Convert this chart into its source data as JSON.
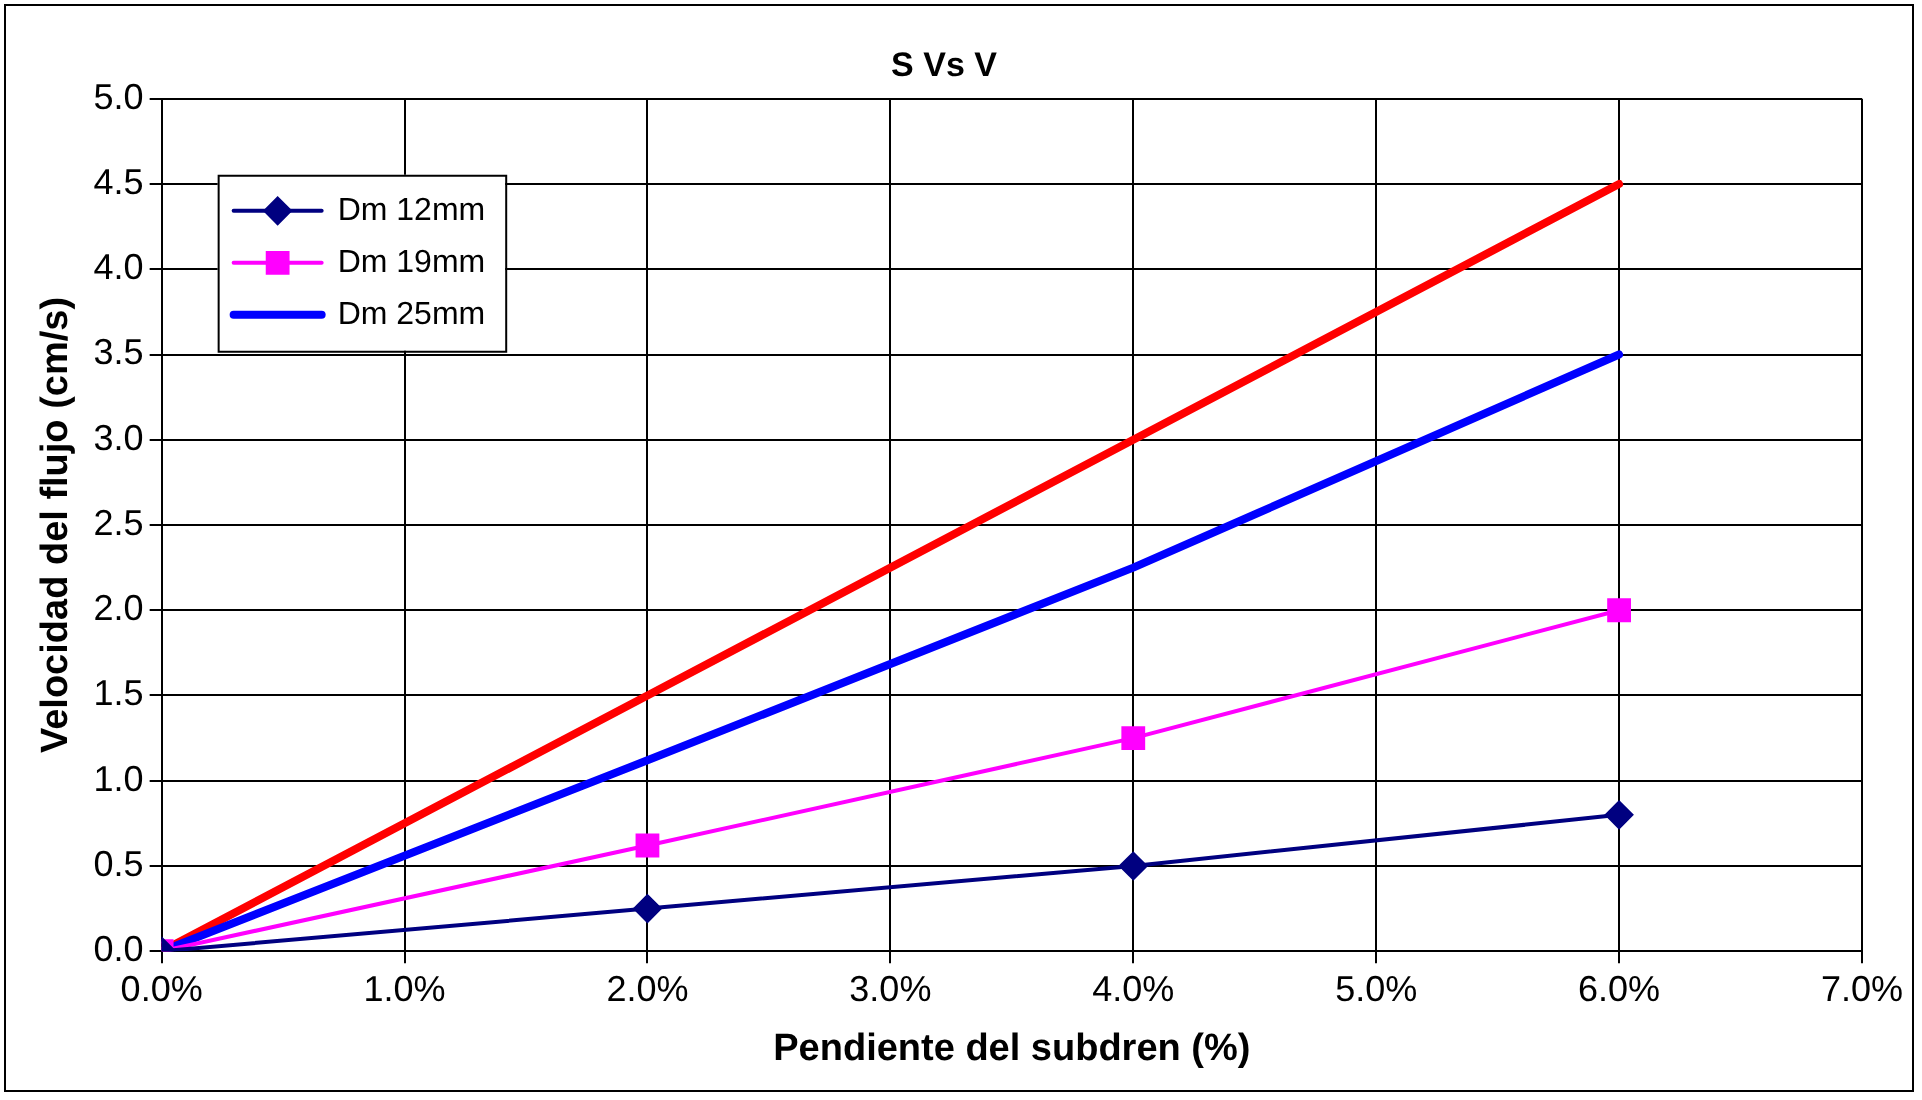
{
  "chart_data": {
    "type": "line",
    "title": "S Vs V",
    "xlabel": "Pendiente del subdren (%)",
    "ylabel": "Velocidad del flujo (cm/s)",
    "x": [
      0,
      2,
      4,
      6
    ],
    "series": [
      {
        "name": "Dm 12mm",
        "color": "#000080",
        "values": [
          0,
          0.25,
          0.5,
          0.8
        ],
        "marker": "diamond"
      },
      {
        "name": "Dm 19mm",
        "color": "#ff00ff",
        "values": [
          0,
          0.62,
          1.25,
          2.0
        ],
        "marker": "square"
      },
      {
        "name": "Dm 25mm",
        "color": "#0000ff",
        "values": [
          0,
          1.12,
          2.25,
          3.5
        ],
        "marker": "none"
      },
      {
        "color": "#ff0000",
        "values": [
          0,
          1.5,
          3.0,
          4.5
        ],
        "marker": "none"
      }
    ],
    "xlim": [
      0,
      7
    ],
    "xticks": [
      {
        "value": 0,
        "label": "0.0%"
      },
      {
        "value": 1,
        "label": "1.0%"
      },
      {
        "value": 2,
        "label": "2.0%"
      },
      {
        "value": 3,
        "label": "3.0%"
      },
      {
        "value": 4,
        "label": "4.0%"
      },
      {
        "value": 5,
        "label": "5.0%"
      },
      {
        "value": 6,
        "label": "6.0%"
      },
      {
        "value": 7,
        "label": "7.0%"
      }
    ],
    "ylim": [
      0,
      5
    ],
    "yticks": [
      {
        "value": 0,
        "label": "0.0"
      },
      {
        "value": 0.5,
        "label": "0.5"
      },
      {
        "value": 1,
        "label": "1.0"
      },
      {
        "value": 1.5,
        "label": "1.5"
      },
      {
        "value": 2,
        "label": "2.0"
      },
      {
        "value": 2.5,
        "label": "2.5"
      },
      {
        "value": 3,
        "label": "3.0"
      },
      {
        "value": 3.5,
        "label": "3.5"
      },
      {
        "value": 4,
        "label": "4.0"
      },
      {
        "value": 4.5,
        "label": "4.5"
      },
      {
        "value": 5,
        "label": "5.0"
      }
    ],
    "grid": true,
    "legend": "top left"
  }
}
